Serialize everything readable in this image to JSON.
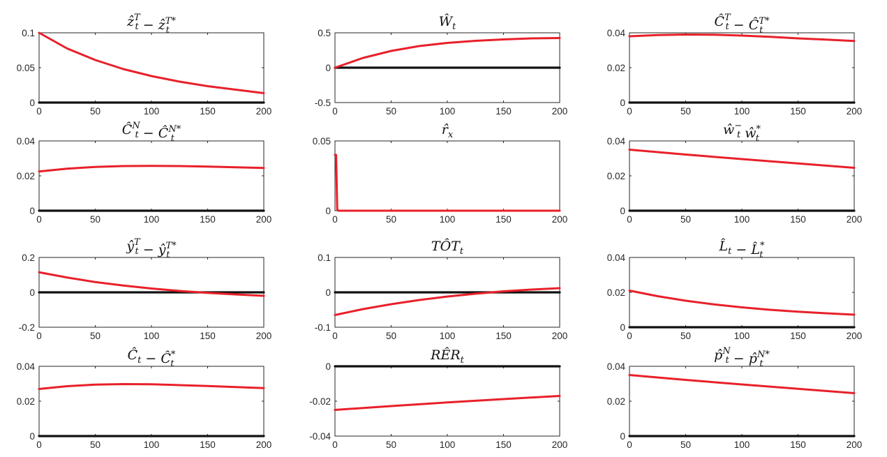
{
  "colors": {
    "response": "#e8202a",
    "zero": "#111111"
  },
  "chart_data": [
    {
      "type": "line",
      "title": "ẑ_t^T − ẑ_t^{T*}",
      "xlim": [
        0,
        200
      ],
      "ylim": [
        0,
        0.1
      ],
      "xticks": [
        0,
        50,
        100,
        150,
        200
      ],
      "yticks": [
        0,
        0.05,
        0.1
      ],
      "xticklabels": [
        "0",
        "50",
        "100",
        "150",
        "200"
      ],
      "yticklabels": [
        "0",
        "0.05",
        "0.1"
      ],
      "series": [
        {
          "role": "response",
          "x": [
            0,
            25,
            50,
            75,
            100,
            125,
            150,
            175,
            200
          ],
          "y": [
            0.1,
            0.0775,
            0.061,
            0.048,
            0.038,
            0.03,
            0.0235,
            0.0185,
            0.0135
          ]
        },
        {
          "role": "zero",
          "x": [
            0,
            200
          ],
          "y": [
            0,
            0
          ]
        }
      ]
    },
    {
      "type": "line",
      "title": "Ŵ_t",
      "xlim": [
        0,
        200
      ],
      "ylim": [
        -0.5,
        0.5
      ],
      "xticks": [
        0,
        50,
        100,
        150,
        200
      ],
      "yticks": [
        -0.5,
        0,
        0.5
      ],
      "xticklabels": [
        "0",
        "50",
        "100",
        "150",
        "200"
      ],
      "yticklabels": [
        "-0.5",
        "0",
        "0.5"
      ],
      "series": [
        {
          "role": "response",
          "x": [
            0,
            25,
            50,
            75,
            100,
            125,
            150,
            175,
            200
          ],
          "y": [
            0,
            0.14,
            0.24,
            0.31,
            0.355,
            0.385,
            0.405,
            0.42,
            0.425
          ]
        },
        {
          "role": "zero",
          "x": [
            0,
            200
          ],
          "y": [
            0,
            0
          ]
        }
      ]
    },
    {
      "type": "line",
      "title": "Ĉ_t^T − Ĉ_t^{T*}",
      "xlim": [
        0,
        200
      ],
      "ylim": [
        0,
        0.04
      ],
      "xticks": [
        0,
        50,
        100,
        150,
        200
      ],
      "yticks": [
        0,
        0.02,
        0.04
      ],
      "xticklabels": [
        "0",
        "50",
        "100",
        "150",
        "200"
      ],
      "yticklabels": [
        "0",
        "0.02",
        "0.04"
      ],
      "series": [
        {
          "role": "response",
          "x": [
            0,
            25,
            50,
            75,
            100,
            125,
            150,
            175,
            200
          ],
          "y": [
            0.038,
            0.0387,
            0.039,
            0.0389,
            0.0384,
            0.0377,
            0.0368,
            0.0361,
            0.0353
          ]
        },
        {
          "role": "zero",
          "x": [
            0,
            200
          ],
          "y": [
            0,
            0
          ]
        }
      ]
    },
    {
      "type": "line",
      "title": "Ĉ_t^N − Ĉ_t^{N*}",
      "xlim": [
        0,
        200
      ],
      "ylim": [
        0,
        0.04
      ],
      "xticks": [
        0,
        50,
        100,
        150,
        200
      ],
      "yticks": [
        0,
        0.02,
        0.04
      ],
      "xticklabels": [
        "0",
        "50",
        "100",
        "150",
        "200"
      ],
      "yticklabels": [
        "0",
        "0.02",
        "0.04"
      ],
      "series": [
        {
          "role": "response",
          "x": [
            0,
            25,
            50,
            75,
            100,
            125,
            150,
            175,
            200
          ],
          "y": [
            0.0225,
            0.0241,
            0.0251,
            0.0256,
            0.0257,
            0.0256,
            0.0253,
            0.0249,
            0.0245
          ]
        },
        {
          "role": "zero",
          "x": [
            0,
            200
          ],
          "y": [
            0,
            0
          ]
        }
      ]
    },
    {
      "type": "line",
      "title": "r̂_xt",
      "xlim": [
        0,
        200
      ],
      "ylim": [
        0,
        0.05
      ],
      "xticks": [
        0,
        50,
        100,
        150,
        200
      ],
      "yticks": [
        0,
        0.05
      ],
      "xticklabels": [
        "0",
        "50",
        "100",
        "150",
        "200"
      ],
      "yticklabels": [
        "0",
        "0.05"
      ],
      "series": [
        {
          "role": "response",
          "x": [
            0,
            1,
            2,
            3,
            200
          ],
          "y": [
            0.04,
            0.04,
            0.001,
            0,
            0
          ]
        }
      ]
    },
    {
      "type": "line",
      "title": "ŵ_t^− ŵ_t^*",
      "xlim": [
        0,
        200
      ],
      "ylim": [
        0,
        0.04
      ],
      "xticks": [
        0,
        50,
        100,
        150,
        200
      ],
      "yticks": [
        0,
        0.02,
        0.04
      ],
      "xticklabels": [
        "0",
        "50",
        "100",
        "150",
        "200"
      ],
      "yticklabels": [
        "0",
        "0.02",
        "0.04"
      ],
      "series": [
        {
          "role": "response",
          "x": [
            0,
            50,
            100,
            150,
            200
          ],
          "y": [
            0.035,
            0.0322,
            0.0296,
            0.0271,
            0.0246
          ]
        },
        {
          "role": "zero",
          "x": [
            0,
            200
          ],
          "y": [
            0,
            0
          ]
        }
      ]
    },
    {
      "type": "line",
      "title": "ŷ_t^T − ŷ_t^{T*}",
      "xlim": [
        0,
        200
      ],
      "ylim": [
        -0.2,
        0.2
      ],
      "xticks": [
        0,
        50,
        100,
        150,
        200
      ],
      "yticks": [
        -0.2,
        0,
        0.2
      ],
      "xticklabels": [
        "0",
        "50",
        "100",
        "150",
        "200"
      ],
      "yticklabels": [
        "-0.2",
        "0",
        "0.2"
      ],
      "series": [
        {
          "role": "response",
          "x": [
            0,
            25,
            50,
            75,
            100,
            125,
            150,
            175,
            200
          ],
          "y": [
            0.115,
            0.085,
            0.059,
            0.039,
            0.022,
            0.008,
            -0.003,
            -0.012,
            -0.02
          ]
        },
        {
          "role": "zero",
          "x": [
            0,
            200
          ],
          "y": [
            0,
            0
          ]
        }
      ]
    },
    {
      "type": "line",
      "title": "TÔT_t",
      "xlim": [
        0,
        200
      ],
      "ylim": [
        -0.1,
        0.1
      ],
      "xticks": [
        0,
        50,
        100,
        150,
        200
      ],
      "yticks": [
        -0.1,
        0,
        0.1
      ],
      "xticklabels": [
        "0",
        "50",
        "100",
        "150",
        "200"
      ],
      "yticklabels": [
        "-0.1",
        "0",
        "0.1"
      ],
      "series": [
        {
          "role": "response",
          "x": [
            0,
            25,
            50,
            75,
            100,
            125,
            150,
            175,
            200
          ],
          "y": [
            -0.065,
            -0.048,
            -0.034,
            -0.022,
            -0.012,
            -0.004,
            0.003,
            0.008,
            0.012
          ]
        },
        {
          "role": "zero",
          "x": [
            0,
            200
          ],
          "y": [
            0,
            0
          ]
        }
      ]
    },
    {
      "type": "line",
      "title": "L̂_t − L̂_t^*",
      "xlim": [
        0,
        200
      ],
      "ylim": [
        0,
        0.04
      ],
      "xticks": [
        0,
        50,
        100,
        150,
        200
      ],
      "yticks": [
        0,
        0.02,
        0.04
      ],
      "xticklabels": [
        "0",
        "50",
        "100",
        "150",
        "200"
      ],
      "yticklabels": [
        "0",
        "0.02",
        "0.04"
      ],
      "series": [
        {
          "role": "response",
          "x": [
            0,
            25,
            50,
            75,
            100,
            125,
            150,
            175,
            200
          ],
          "y": [
            0.021,
            0.0178,
            0.0152,
            0.0131,
            0.0114,
            0.01,
            0.0089,
            0.008,
            0.0072
          ]
        },
        {
          "role": "zero",
          "x": [
            0,
            200
          ],
          "y": [
            0,
            0
          ]
        }
      ]
    },
    {
      "type": "line",
      "title": "Ĉ_t − Ĉ_t^*",
      "xlim": [
        0,
        200
      ],
      "ylim": [
        0,
        0.04
      ],
      "xticks": [
        0,
        50,
        100,
        150,
        200
      ],
      "yticks": [
        0,
        0.02,
        0.04
      ],
      "xticklabels": [
        "0",
        "50",
        "100",
        "150",
        "200"
      ],
      "yticklabels": [
        "0",
        "0.02",
        "0.04"
      ],
      "series": [
        {
          "role": "response",
          "x": [
            0,
            25,
            50,
            75,
            100,
            125,
            150,
            175,
            200
          ],
          "y": [
            0.027,
            0.0286,
            0.0295,
            0.0298,
            0.0297,
            0.0292,
            0.0287,
            0.0281,
            0.0275
          ]
        },
        {
          "role": "zero",
          "x": [
            0,
            200
          ],
          "y": [
            0,
            0
          ]
        }
      ]
    },
    {
      "type": "line",
      "title": "RÊR_t",
      "xlim": [
        0,
        200
      ],
      "ylim": [
        -0.04,
        0
      ],
      "xticks": [
        0,
        50,
        100,
        150,
        200
      ],
      "yticks": [
        -0.04,
        -0.02,
        0
      ],
      "xticklabels": [
        "0",
        "50",
        "100",
        "150",
        "200"
      ],
      "yticklabels": [
        "-0.04",
        "-0.02",
        "0"
      ],
      "series": [
        {
          "role": "response",
          "x": [
            0,
            50,
            100,
            150,
            200
          ],
          "y": [
            -0.025,
            -0.0228,
            -0.0207,
            -0.0188,
            -0.017
          ]
        },
        {
          "role": "zero",
          "x": [
            0,
            200
          ],
          "y": [
            0,
            0
          ]
        }
      ]
    },
    {
      "type": "line",
      "title": "p̂_t^N − p̂_t^{N*}",
      "xlim": [
        0,
        200
      ],
      "ylim": [
        0,
        0.04
      ],
      "xticks": [
        0,
        50,
        100,
        150,
        200
      ],
      "yticks": [
        0,
        0.02,
        0.04
      ],
      "xticklabels": [
        "0",
        "50",
        "100",
        "150",
        "200"
      ],
      "yticklabels": [
        "0",
        "0.02",
        "0.04"
      ],
      "series": [
        {
          "role": "response",
          "x": [
            0,
            50,
            100,
            150,
            200
          ],
          "y": [
            0.035,
            0.0322,
            0.0296,
            0.0271,
            0.0246
          ]
        },
        {
          "role": "zero",
          "x": [
            0,
            200
          ],
          "y": [
            0,
            0
          ]
        }
      ]
    }
  ]
}
